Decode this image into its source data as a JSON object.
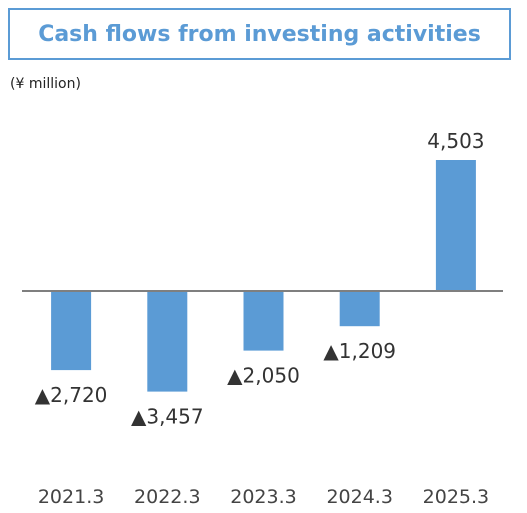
{
  "title": "Cash flows from investing activities",
  "unit_label": "(¥ million)",
  "negative_marker": "▲",
  "colors": {
    "bar": "#5b9bd5",
    "axis": "#7f7f7f",
    "title": "#5b9bd5"
  },
  "chart_data": {
    "type": "bar",
    "title": "Cash flows from investing activities",
    "categories": [
      "2021.3",
      "2022.3",
      "2023.3",
      "2024.3",
      "2025.3"
    ],
    "values": [
      -2720,
      -3457,
      -2050,
      -1209,
      4503
    ],
    "data_labels": [
      "▲2,720",
      "▲3,457",
      "▲2,050",
      "▲1,209",
      "4,503"
    ],
    "ylabel": "(¥ million)",
    "ylim": [
      -5500,
      5000
    ],
    "grid": false,
    "legend": "none"
  }
}
